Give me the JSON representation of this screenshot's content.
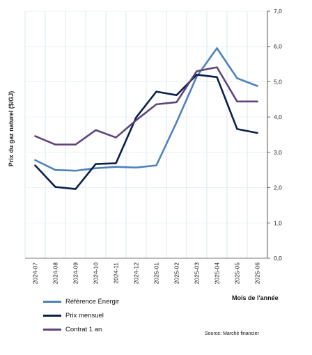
{
  "chart_data": {
    "type": "line",
    "xlabel": "Mois de l'année",
    "ylabel": "Prix du gaz naturel ($/GJ)",
    "ylim": [
      0,
      7
    ],
    "yticks": [
      "0,0",
      "1,0",
      "2,0",
      "3,0",
      "4,0",
      "5,0",
      "6,0",
      "7,0"
    ],
    "y_axis_side": "right",
    "grid": true,
    "legend_position": "bottom-left",
    "categories": [
      "2024-07",
      "2024-08",
      "2024-09",
      "2024-10",
      "2024-11",
      "2024-12",
      "2025-01",
      "2025-02",
      "2025-03",
      "2025-04",
      "2025-05",
      "2025-06"
    ],
    "series": [
      {
        "name": "Référence Énergir",
        "color": "#4f81bd",
        "values": [
          2.78,
          2.5,
          2.48,
          2.55,
          2.59,
          2.57,
          2.63,
          3.85,
          5.15,
          5.95,
          5.1,
          4.88
        ]
      },
      {
        "name": "Prix mensuel",
        "color": "#0b1f4b",
        "values": [
          2.63,
          2.02,
          1.96,
          2.67,
          2.69,
          3.99,
          4.72,
          4.62,
          5.2,
          5.13,
          3.66,
          3.55
        ]
      },
      {
        "name": "Contrat 1 an",
        "color": "#5e4479",
        "values": [
          3.46,
          3.22,
          3.22,
          3.63,
          3.42,
          3.91,
          4.36,
          4.42,
          5.3,
          5.41,
          4.44,
          4.44
        ]
      }
    ],
    "source": "Source: Marché financier"
  }
}
